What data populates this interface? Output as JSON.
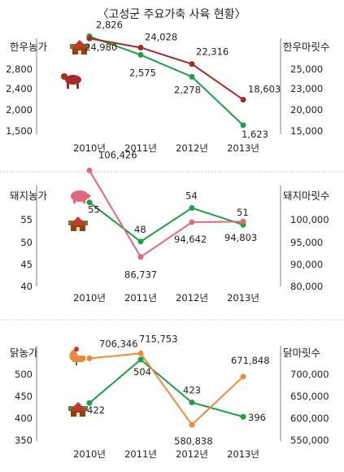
{
  "title": "〈고성군 주요가축 사육 현황〉",
  "colors": {
    "farms": "#1e9e4a",
    "cattle": "#a52a2a",
    "pig": "#e0697a",
    "chicken": "#ec8a3c",
    "axis": "#7f7f7f"
  },
  "chart_data": [
    {
      "type": "line",
      "x": [
        "2010년",
        "2011년",
        "2012년",
        "2013년"
      ],
      "left_axis": {
        "label": "한우농가",
        "ticks": [
          "2,800",
          "2,400",
          "2,000",
          "1,500"
        ],
        "ylim": [
          1500,
          2800
        ]
      },
      "right_axis": {
        "label": "한우마릿수",
        "ticks": [
          "25,000",
          "23,000",
          "20,000",
          "15,000"
        ],
        "ylim": [
          15000,
          25000
        ]
      },
      "series": [
        {
          "name": "한우농가",
          "axis": "left",
          "color": "#1e9e4a",
          "values": [
            2826,
            2575,
            2278,
            1623
          ],
          "labels": [
            "2,826",
            "2,575",
            "2,278",
            "1,623"
          ],
          "icon": "farm-icon"
        },
        {
          "name": "한우마릿수",
          "axis": "right",
          "color": "#a52a2a",
          "values": [
            24980,
            24028,
            22316,
            18603
          ],
          "labels": [
            "24,980",
            "24,028",
            "22,316",
            "18,603"
          ],
          "icon": "cow-icon"
        }
      ]
    },
    {
      "type": "line",
      "x": [
        "2010년",
        "2011년",
        "2012년",
        "2013년"
      ],
      "left_axis": {
        "label": "돼지농가",
        "ticks": [
          "55",
          "50",
          "45",
          "40"
        ],
        "ylim": [
          40,
          58
        ]
      },
      "right_axis": {
        "label": "돼지마릿수",
        "ticks": [
          "100,000",
          "95,000",
          "90,000",
          "80,000"
        ],
        "ylim": [
          80000,
          103000
        ]
      },
      "series": [
        {
          "name": "돼지농가",
          "axis": "left",
          "color": "#1e9e4a",
          "values": [
            55,
            48,
            54,
            51
          ],
          "labels": [
            "55",
            "48",
            "54",
            "51"
          ],
          "icon": "farm-icon"
        },
        {
          "name": "돼지마릿수",
          "axis": "right",
          "color": "#e0697a",
          "values": [
            106426,
            86737,
            94642,
            94803
          ],
          "labels": [
            "106,426",
            "86,737",
            "94,642",
            "94,803"
          ],
          "icon": "pig-icon"
        }
      ]
    },
    {
      "type": "line",
      "x": [
        "2010년",
        "2011년",
        "2012년",
        "2013년"
      ],
      "left_axis": {
        "label": "닭농가",
        "ticks": [
          "500",
          "450",
          "400",
          "350"
        ],
        "ylim": [
          350,
          530
        ]
      },
      "right_axis": {
        "label": "닭마릿수",
        "ticks": [
          "700,000",
          "650,000",
          "600,000",
          "550,000"
        ],
        "ylim": [
          550000,
          730000
        ]
      },
      "series": [
        {
          "name": "닭농가",
          "axis": "left",
          "color": "#1e9e4a",
          "values": [
            422,
            504,
            423,
            396
          ],
          "labels": [
            "422",
            "504",
            "423",
            "396"
          ],
          "icon": "farm-icon"
        },
        {
          "name": "닭마릿수",
          "axis": "right",
          "color": "#ec8a3c",
          "values": [
            706346,
            715753,
            580838,
            671848
          ],
          "labels": [
            "706,346",
            "715,753",
            "580,838",
            "671,848"
          ],
          "icon": "rooster-icon"
        }
      ]
    }
  ]
}
